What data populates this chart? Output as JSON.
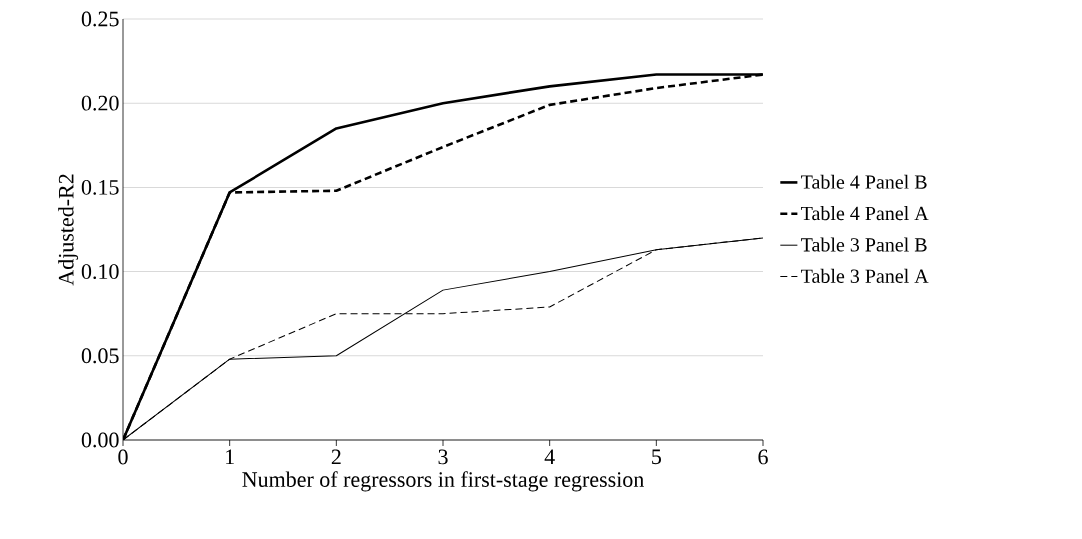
{
  "chart_data": {
    "type": "line",
    "xlabel": "Number of regressors in first-stage regression",
    "ylabel": "Adjusted-R2",
    "x": [
      0,
      1,
      2,
      3,
      4,
      5,
      6
    ],
    "xlim": [
      0,
      6
    ],
    "xticks": [
      0,
      1,
      2,
      3,
      4,
      5,
      6
    ],
    "ylim": [
      0,
      0.25
    ],
    "yticks": [
      {
        "value": 0,
        "label": "0.00"
      },
      {
        "value": 0.05,
        "label": "0.05"
      },
      {
        "value": 0.1,
        "label": "0.10"
      },
      {
        "value": 0.15,
        "label": "0.15"
      },
      {
        "value": 0.2,
        "label": "0.20"
      },
      {
        "value": 0.25,
        "label": "0.25"
      }
    ],
    "grid": "y",
    "legend": "right",
    "series": [
      {
        "name": "Table 4 Panel B",
        "color": "#000000",
        "line_style": "solid",
        "values": [
          0,
          0.147,
          0.185,
          0.2,
          0.21,
          0.217,
          0.217
        ]
      },
      {
        "name": "Table 4 Panel A",
        "color": "#000000",
        "line_style": "dashed",
        "values": [
          0,
          0.147,
          0.148,
          0.174,
          0.199,
          0.209,
          0.217
        ]
      },
      {
        "name": "Table 3 Panel B",
        "color": "#000000",
        "line_style": "solid",
        "values": [
          0,
          0.048,
          0.05,
          0.089,
          0.1,
          0.113,
          0.12
        ]
      },
      {
        "name": "Table 3 Panel A",
        "color": "#000000",
        "line_style": "dashed",
        "values": [
          0,
          0.048,
          0.075,
          0.075,
          0.079,
          0.113,
          0.12
        ]
      }
    ]
  }
}
